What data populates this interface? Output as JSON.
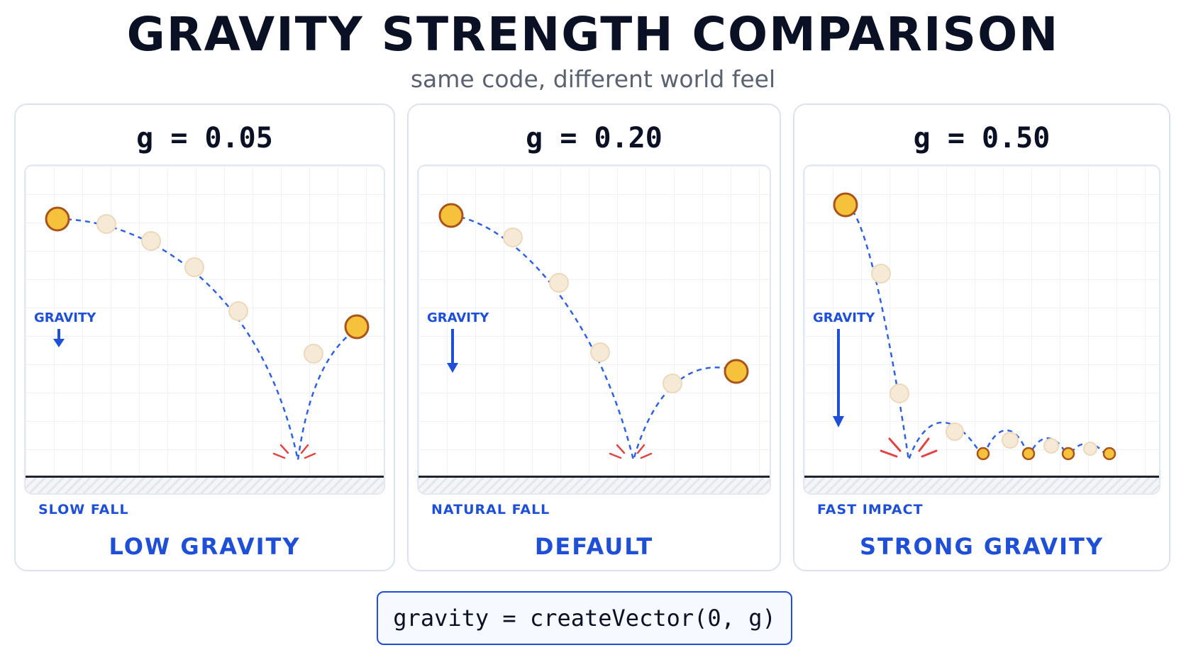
{
  "header": {
    "title": "GRAVITY STRENGTH COMPARISON",
    "subtitle": "same code, different world feel"
  },
  "panels": [
    {
      "heading": "g = 0.05",
      "gravity_label": "GRAVITY",
      "fall_label": "SLOW FALL",
      "caption": "LOW GRAVITY",
      "g": 0.05
    },
    {
      "heading": "g = 0.20",
      "gravity_label": "GRAVITY",
      "fall_label": "NATURAL FALL",
      "caption": "DEFAULT",
      "g": 0.2
    },
    {
      "heading": "g = 0.50",
      "gravity_label": "GRAVITY",
      "fall_label": "FAST IMPACT",
      "caption": "STRONG GRAVITY",
      "g": 0.5
    }
  ],
  "code": {
    "snippet": "gravity = createVector(0, g)"
  },
  "colors": {
    "accent": "#1e4fd6",
    "ball": "#f7c23b",
    "ball_stroke": "#a8541b",
    "ghost": "#f6ead6",
    "impact": "#e04444"
  }
}
